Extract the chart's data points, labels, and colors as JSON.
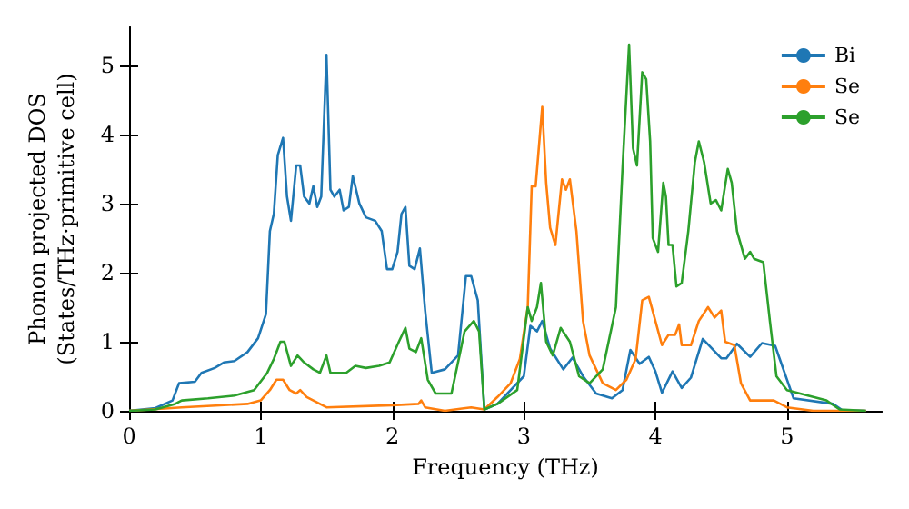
{
  "chart_data": {
    "type": "line",
    "xlabel": "Frequency (THz)",
    "ylabel": "Phonon projected DOS\n(States/THz·primitive cell)",
    "xlim": [
      0,
      5.72
    ],
    "ylim": [
      0,
      5.55
    ],
    "xticks": [
      0,
      1,
      2,
      3,
      4,
      5
    ],
    "yticks": [
      0,
      1,
      2,
      3,
      4,
      5
    ],
    "grid": false,
    "legend": "top right",
    "marker": "none",
    "line_style": "solid",
    "series": [
      {
        "name": "Bi",
        "color": "#1f77b4",
        "x": [
          0,
          0.2,
          0.33,
          0.38,
          0.5,
          0.55,
          0.65,
          0.72,
          0.8,
          0.9,
          0.98,
          1.04,
          1.07,
          1.1,
          1.13,
          1.17,
          1.2,
          1.23,
          1.27,
          1.3,
          1.33,
          1.37,
          1.4,
          1.43,
          1.46,
          1.5,
          1.53,
          1.56,
          1.6,
          1.63,
          1.67,
          1.7,
          1.75,
          1.8,
          1.87,
          1.92,
          1.96,
          2.0,
          2.04,
          2.07,
          2.1,
          2.13,
          2.17,
          2.21,
          2.25,
          2.3,
          2.4,
          2.5,
          2.56,
          2.6,
          2.65,
          2.7,
          2.8,
          2.9,
          3.0,
          3.05,
          3.1,
          3.14,
          3.2,
          3.3,
          3.37,
          3.45,
          3.55,
          3.67,
          3.75,
          3.81,
          3.88,
          3.95,
          4.0,
          4.05,
          4.13,
          4.2,
          4.27,
          4.36,
          4.5,
          4.54,
          4.62,
          4.72,
          4.81,
          4.91,
          5.05,
          5.35,
          5.42,
          5.6
        ],
        "values": [
          0,
          0.04,
          0.15,
          0.4,
          0.42,
          0.55,
          0.62,
          0.7,
          0.72,
          0.85,
          1.05,
          1.4,
          2.6,
          2.85,
          3.7,
          3.95,
          3.1,
          2.75,
          3.55,
          3.55,
          3.1,
          3.0,
          3.25,
          2.95,
          3.1,
          5.15,
          3.2,
          3.1,
          3.2,
          2.9,
          2.95,
          3.4,
          3.0,
          2.8,
          2.75,
          2.6,
          2.05,
          2.05,
          2.3,
          2.85,
          2.95,
          2.1,
          2.05,
          2.35,
          1.45,
          0.55,
          0.6,
          0.8,
          1.95,
          1.95,
          1.6,
          0.02,
          0.1,
          0.3,
          0.5,
          1.23,
          1.15,
          1.3,
          0.9,
          0.6,
          0.77,
          0.5,
          0.25,
          0.18,
          0.3,
          0.88,
          0.68,
          0.78,
          0.57,
          0.26,
          0.57,
          0.33,
          0.48,
          1.04,
          0.76,
          0.76,
          0.97,
          0.78,
          0.98,
          0.94,
          0.18,
          0.1,
          0.01,
          0
        ]
      },
      {
        "name": "Se",
        "color": "#ff7f0e",
        "x": [
          0,
          0.4,
          0.9,
          1.0,
          1.07,
          1.12,
          1.17,
          1.22,
          1.27,
          1.3,
          1.35,
          1.45,
          1.5,
          2.0,
          2.2,
          2.22,
          2.25,
          2.4,
          2.6,
          2.7,
          2.8,
          2.9,
          2.97,
          3.03,
          3.06,
          3.09,
          3.14,
          3.17,
          3.2,
          3.24,
          3.29,
          3.32,
          3.35,
          3.4,
          3.45,
          3.5,
          3.6,
          3.7,
          3.78,
          3.85,
          3.9,
          3.95,
          4.0,
          4.05,
          4.1,
          4.15,
          4.18,
          4.2,
          4.27,
          4.33,
          4.4,
          4.45,
          4.5,
          4.53,
          4.6,
          4.65,
          4.72,
          4.9,
          5.0,
          5.2,
          5.6
        ],
        "values": [
          0,
          0.05,
          0.1,
          0.15,
          0.3,
          0.45,
          0.45,
          0.3,
          0.25,
          0.3,
          0.2,
          0.1,
          0.05,
          0.08,
          0.1,
          0.15,
          0.05,
          0,
          0.05,
          0.02,
          0.2,
          0.4,
          0.75,
          1.5,
          3.25,
          3.25,
          4.4,
          3.3,
          2.65,
          2.4,
          3.35,
          3.2,
          3.35,
          2.6,
          1.3,
          0.8,
          0.4,
          0.3,
          0.45,
          0.75,
          1.6,
          1.65,
          1.3,
          0.95,
          1.1,
          1.1,
          1.25,
          0.95,
          0.95,
          1.3,
          1.5,
          1.35,
          1.45,
          1.0,
          0.95,
          0.4,
          0.15,
          0.15,
          0.05,
          0,
          0
        ]
      },
      {
        "name": "Se",
        "color": "#2ca02c",
        "x": [
          0,
          0.2,
          0.35,
          0.4,
          0.6,
          0.8,
          0.95,
          1.05,
          1.1,
          1.15,
          1.18,
          1.23,
          1.28,
          1.33,
          1.4,
          1.45,
          1.5,
          1.53,
          1.65,
          1.72,
          1.8,
          1.9,
          1.98,
          2.05,
          2.1,
          2.13,
          2.18,
          2.22,
          2.27,
          2.33,
          2.45,
          2.55,
          2.62,
          2.66,
          2.7,
          2.8,
          2.95,
          3.03,
          3.06,
          3.1,
          3.13,
          3.17,
          3.22,
          3.28,
          3.35,
          3.42,
          3.5,
          3.6,
          3.7,
          3.75,
          3.8,
          3.83,
          3.86,
          3.9,
          3.93,
          3.96,
          3.98,
          4.02,
          4.06,
          4.08,
          4.1,
          4.13,
          4.16,
          4.2,
          4.25,
          4.3,
          4.33,
          4.37,
          4.42,
          4.46,
          4.5,
          4.55,
          4.58,
          4.62,
          4.68,
          4.72,
          4.75,
          4.82,
          4.87,
          4.92,
          5.0,
          5.3,
          5.4,
          5.6
        ],
        "values": [
          0,
          0.02,
          0.1,
          0.15,
          0.18,
          0.22,
          0.3,
          0.55,
          0.75,
          1.0,
          1.0,
          0.65,
          0.8,
          0.7,
          0.6,
          0.55,
          0.8,
          0.55,
          0.55,
          0.65,
          0.62,
          0.65,
          0.7,
          1.0,
          1.2,
          0.9,
          0.85,
          1.05,
          0.45,
          0.25,
          0.25,
          1.15,
          1.3,
          1.15,
          0.02,
          0.1,
          0.3,
          1.5,
          1.3,
          1.5,
          1.85,
          1.0,
          0.8,
          1.2,
          1.0,
          0.5,
          0.4,
          0.6,
          1.5,
          3.5,
          5.3,
          3.8,
          3.55,
          4.9,
          4.8,
          3.9,
          2.5,
          2.3,
          3.3,
          3.1,
          2.4,
          2.4,
          1.8,
          1.85,
          2.6,
          3.6,
          3.9,
          3.6,
          3.0,
          3.05,
          2.9,
          3.5,
          3.3,
          2.6,
          2.2,
          2.3,
          2.2,
          2.15,
          1.3,
          0.5,
          0.3,
          0.15,
          0.02,
          0
        ]
      }
    ]
  }
}
